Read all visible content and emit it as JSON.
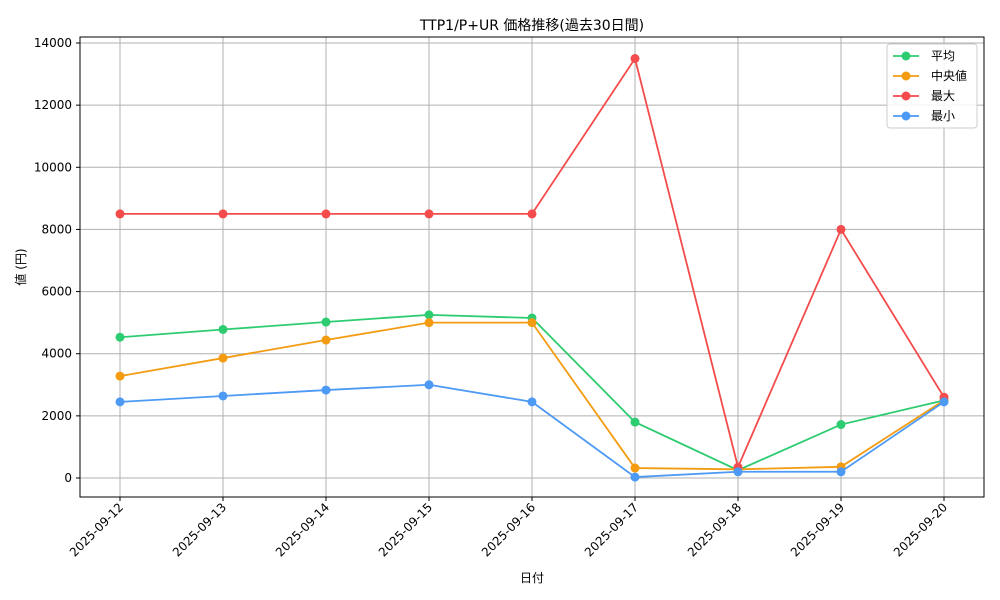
{
  "chart_data": {
    "type": "line",
    "title": "TTP1/P+UR 価格推移(過去30日間)",
    "xlabel": "日付",
    "ylabel": "値 (円)",
    "ylim": [
      -600,
      14200
    ],
    "yticks": [
      0,
      2000,
      4000,
      6000,
      8000,
      10000,
      12000,
      14000
    ],
    "grid": true,
    "legend_position": "upper right",
    "categories": [
      "2025-09-12",
      "2025-09-13",
      "2025-09-14",
      "2025-09-15",
      "2025-09-16",
      "2025-09-17",
      "2025-09-18",
      "2025-09-19",
      "2025-09-20"
    ],
    "series": [
      {
        "name": "平均",
        "color": "#2ecc71",
        "values": [
          4530,
          4780,
          5020,
          5250,
          5150,
          1800,
          250,
          1720,
          2500
        ]
      },
      {
        "name": "中央値",
        "color": "#f39c12",
        "values": [
          3280,
          3860,
          4440,
          5000,
          5000,
          320,
          280,
          360,
          2500
        ]
      },
      {
        "name": "最大",
        "color": "#f44c4c",
        "values": [
          8500,
          8500,
          8500,
          8500,
          8500,
          13500,
          350,
          8000,
          2600
        ]
      },
      {
        "name": "最小",
        "color": "#4d9af5",
        "values": [
          2450,
          2640,
          2830,
          3000,
          2450,
          30,
          200,
          200,
          2450
        ]
      }
    ]
  }
}
